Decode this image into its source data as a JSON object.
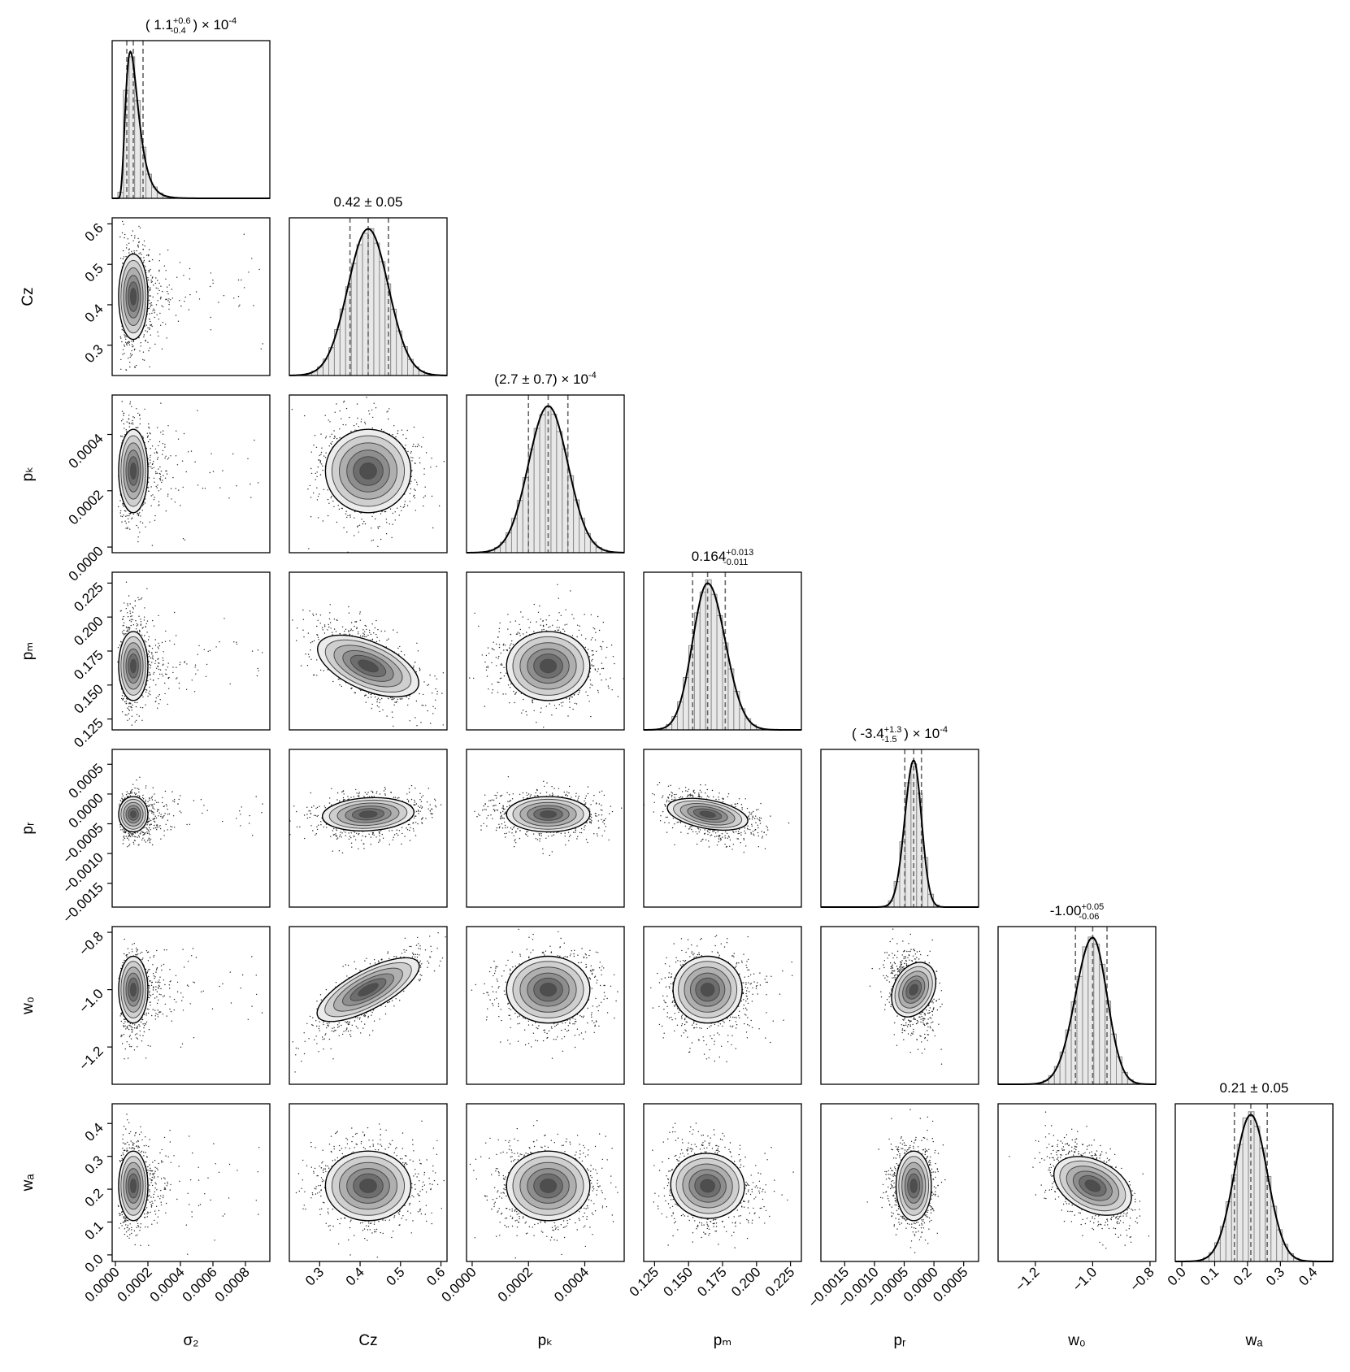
{
  "chart_data": {
    "type": "corner",
    "axis_labels": [
      "σ₂",
      "Cz",
      "pₖ",
      "pₘ",
      "pᵣ",
      "w₀",
      "wₐ"
    ],
    "parameters": [
      {
        "label": "σ₂",
        "mean": 0.00011,
        "sigma_minus": 4e-05,
        "sigma_plus": 6e-05,
        "quantiles": [
          7e-05,
          0.00011,
          0.00017
        ],
        "range": [
          -2e-05,
          0.00095
        ],
        "ticks": [
          0.0,
          0.0002,
          0.0004,
          0.0006,
          0.0008
        ],
        "tick_labels": [
          "0.0000",
          "0.0002",
          "0.0004",
          "0.0006",
          "0.0008"
        ],
        "title": {
          "prefix": "( 1.1",
          "sup": "+0.6",
          "sub": "-0.4",
          "suffix": ") × 10",
          "exp": "-4"
        }
      },
      {
        "label": "Cz",
        "mean": 0.42,
        "sigma": 0.05,
        "quantiles": [
          0.375,
          0.42,
          0.47
        ],
        "range": [
          0.225,
          0.615
        ],
        "ticks": [
          0.3,
          0.4,
          0.5,
          0.6
        ],
        "tick_labels": [
          "0.3",
          "0.4",
          "0.5",
          "0.6"
        ],
        "title": {
          "prefix": "0.42 ± 0.05",
          "sup": "",
          "sub": "",
          "suffix": "",
          "exp": ""
        }
      },
      {
        "label": "pₖ",
        "mean": 0.00027,
        "sigma": 7e-05,
        "quantiles": [
          0.0002,
          0.00027,
          0.00034
        ],
        "range": [
          -2e-05,
          0.00054
        ],
        "ticks": [
          0.0,
          0.0002,
          0.0004
        ],
        "tick_labels": [
          "0.0000",
          "0.0002",
          "0.0004"
        ],
        "title": {
          "prefix": "(2.7 ± 0.7) × 10",
          "sup": "",
          "sub": "",
          "suffix": "",
          "exp": "-4"
        }
      },
      {
        "label": "pₘ",
        "mean": 0.164,
        "sigma_minus": 0.011,
        "sigma_plus": 0.013,
        "quantiles": [
          0.153,
          0.164,
          0.177
        ],
        "range": [
          0.117,
          0.233
        ],
        "ticks": [
          0.125,
          0.15,
          0.175,
          0.2,
          0.225
        ],
        "tick_labels": [
          "0.125",
          "0.150",
          "0.175",
          "0.200",
          "0.225"
        ],
        "title": {
          "prefix": "0.164",
          "sup": "+0.013",
          "sub": "-0.011",
          "suffix": "",
          "exp": ""
        }
      },
      {
        "label": "pᵣ",
        "mean": -0.00034,
        "sigma_minus": 0.00015,
        "sigma_plus": 0.00013,
        "quantiles": [
          -0.00049,
          -0.00034,
          -0.00021
        ],
        "range": [
          -0.0019,
          0.00075
        ],
        "ticks": [
          -0.0015,
          -0.001,
          -0.0005,
          0.0,
          0.0005
        ],
        "tick_labels": [
          "−0.0015",
          "−0.0010",
          "−0.0005",
          "0.0000",
          "0.0005"
        ],
        "title": {
          "prefix": "( -3.4",
          "sup": "+1.3",
          "sub": "-1.5",
          "suffix": ") × 10",
          "exp": "-4"
        }
      },
      {
        "label": "w₀",
        "mean": -1.0,
        "sigma_minus": 0.06,
        "sigma_plus": 0.05,
        "quantiles": [
          -1.06,
          -1.0,
          -0.95
        ],
        "range": [
          -1.33,
          -0.78
        ],
        "ticks": [
          -1.2,
          -1.0,
          -0.8
        ],
        "tick_labels": [
          "−1.2",
          "−1.0",
          "−0.8"
        ],
        "title": {
          "prefix": "-1.00",
          "sup": "+0.05",
          "sub": "-0.06",
          "suffix": "",
          "exp": ""
        }
      },
      {
        "label": "wₐ",
        "mean": 0.21,
        "sigma": 0.05,
        "quantiles": [
          0.16,
          0.21,
          0.26
        ],
        "range": [
          -0.02,
          0.46
        ],
        "ticks": [
          0.0,
          0.1,
          0.2,
          0.3,
          0.4
        ],
        "tick_labels": [
          "0.0",
          "0.1",
          "0.2",
          "0.3",
          "0.4"
        ],
        "title": {
          "prefix": "0.21 ± 0.05",
          "sup": "",
          "sub": "",
          "suffix": "",
          "exp": ""
        }
      }
    ],
    "correlations": {
      "1-3": -0.6,
      "1-5": 0.78,
      "3-4": -0.4,
      "4-5": -0.3,
      "5-6": -0.55,
      "3-6": -0.15,
      "1-4": 0.15
    }
  }
}
